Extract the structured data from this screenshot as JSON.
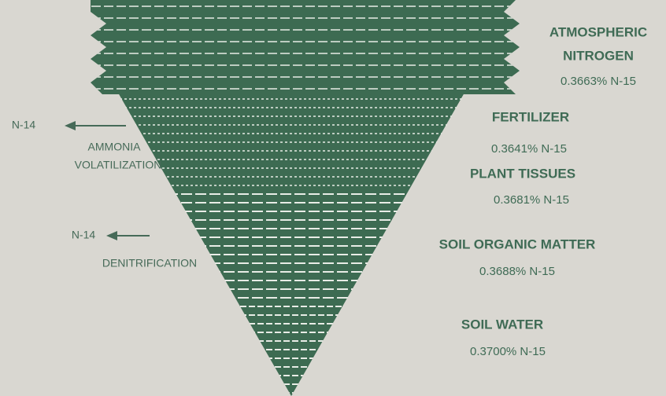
{
  "pools": [
    {
      "name_lines": [
        "ATMOSPHERIC",
        "NITROGEN"
      ],
      "ratio": "0.3663% N-15"
    },
    {
      "name_lines": [
        "FERTILIZER"
      ],
      "ratio": "0.3641% N-15"
    },
    {
      "name_lines": [
        "PLANT TISSUES"
      ],
      "ratio": "0.3681% N-15"
    },
    {
      "name_lines": [
        "SOIL ORGANIC MATTER"
      ],
      "ratio": "0.3688% N-15"
    },
    {
      "name_lines": [
        "SOIL WATER"
      ],
      "ratio": "0.3700% N-15"
    }
  ],
  "losses": [
    {
      "product": "N-14",
      "process_lines": [
        "AMMONIA",
        "VOLATILIZATION"
      ]
    },
    {
      "product": "N-14",
      "process_lines": [
        "DENITRIFICATION"
      ]
    }
  ]
}
